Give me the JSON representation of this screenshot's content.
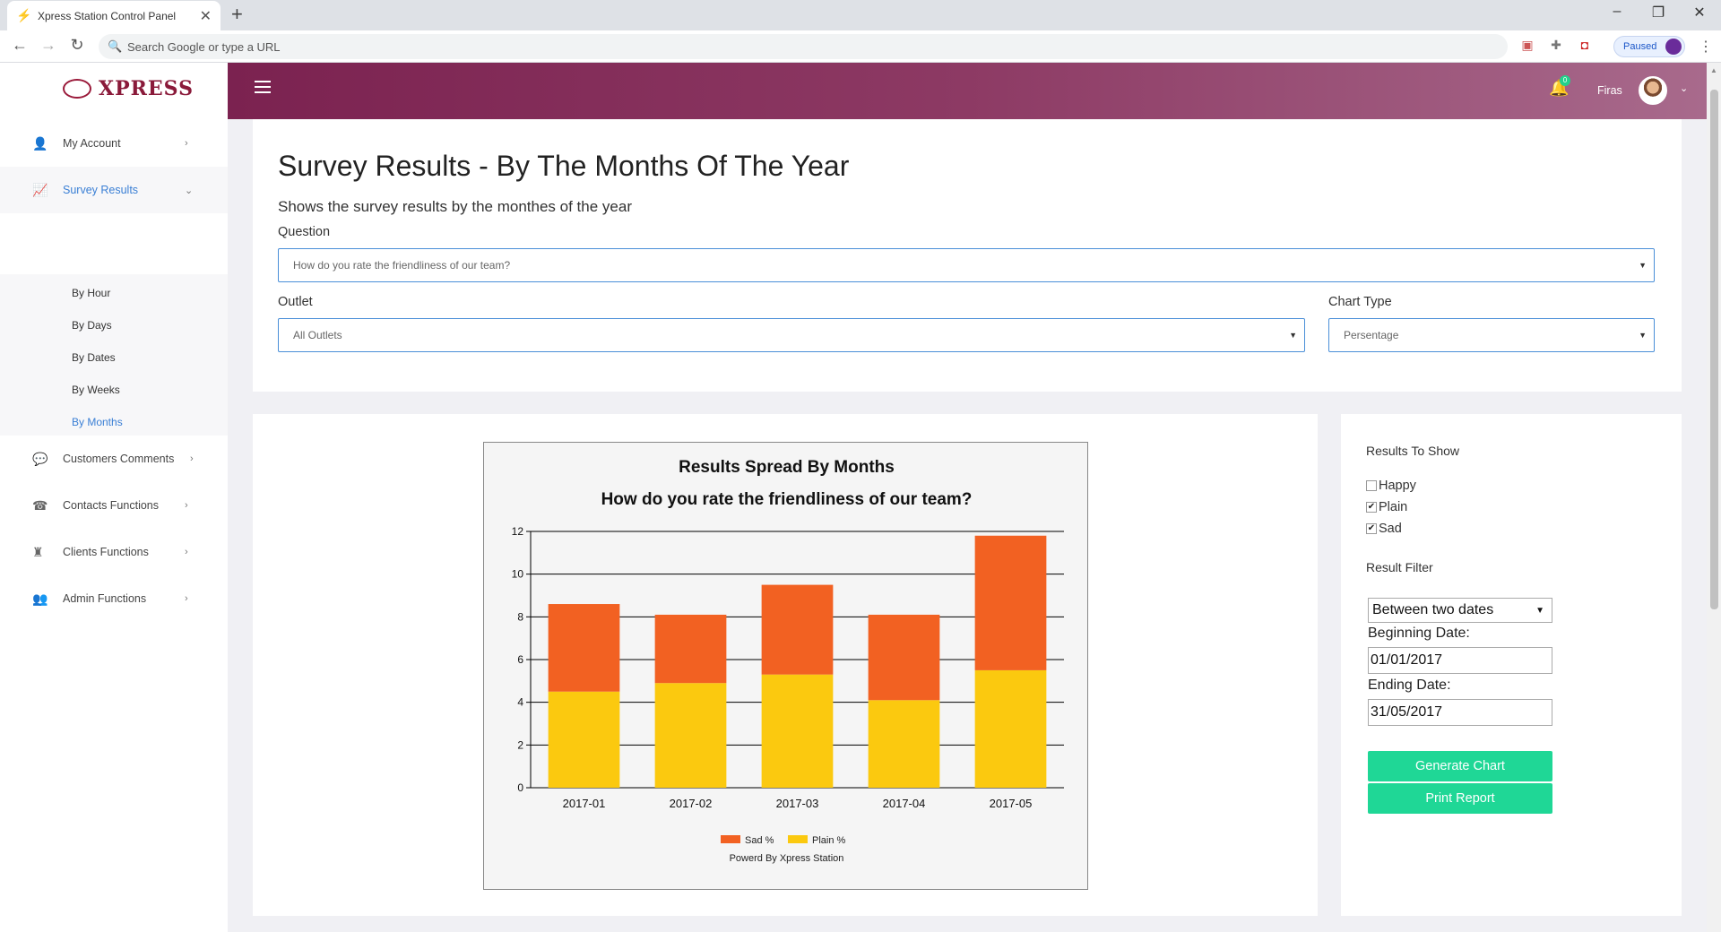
{
  "browser": {
    "tab_title": "Xpress Station Control Panel",
    "address_placeholder": "Search Google or type a URL",
    "profile_status": "Paused"
  },
  "sidebar": {
    "logo_text": "XPRESS",
    "items": [
      {
        "label": "My Account",
        "icon": "user-icon"
      },
      {
        "label": "Survey Results",
        "icon": "chart-icon"
      },
      {
        "label": "Customers Comments",
        "icon": "comment-icon"
      },
      {
        "label": "Contacts Functions",
        "icon": "phone-icon"
      },
      {
        "label": "Clients Functions",
        "icon": "chess-icon"
      },
      {
        "label": "Admin Functions",
        "icon": "users-cog-icon"
      }
    ],
    "submenu": [
      {
        "label": "By Hour"
      },
      {
        "label": "By Days"
      },
      {
        "label": "By Dates"
      },
      {
        "label": "By Weeks"
      },
      {
        "label": "By Months"
      }
    ]
  },
  "header": {
    "notification_count": "0",
    "user_name": "Firas"
  },
  "page": {
    "title": "Survey Results - By The Months Of The Year",
    "subtitle": "Shows the survey results by the monthes of the year",
    "question_label": "Question",
    "question_value": "How do you rate the friendliness of our team?",
    "outlet_label": "Outlet",
    "outlet_value": "All Outlets",
    "chart_type_label": "Chart Type",
    "chart_type_value": "Persentage"
  },
  "options": {
    "results_heading": "Results To Show",
    "checkboxes": [
      {
        "label": "Happy",
        "checked": false
      },
      {
        "label": "Plain",
        "checked": true
      },
      {
        "label": "Sad",
        "checked": true
      }
    ],
    "filter_heading": "Result Filter",
    "filter_value": "Between two dates",
    "begin_label": "Beginning Date:",
    "begin_value": "01/01/2017",
    "end_label": "Ending Date:",
    "end_value": "31/05/2017",
    "generate_label": "Generate Chart",
    "print_label": "Print Report"
  },
  "chart_data": {
    "type": "bar",
    "stacked": true,
    "title": "Results Spread By Months",
    "subtitle": "How do you rate the friendliness of our team?",
    "footer": "Powerd By Xpress Station",
    "categories": [
      "2017-01",
      "2017-02",
      "2017-03",
      "2017-04",
      "2017-05"
    ],
    "series": [
      {
        "name": "Plain %",
        "color": "#fbc90f",
        "values": [
          4.5,
          4.9,
          5.3,
          4.1,
          5.5
        ]
      },
      {
        "name": "Sad %",
        "color": "#f26122",
        "values": [
          4.1,
          3.2,
          4.2,
          4.0,
          6.3
        ]
      }
    ],
    "legend_order": [
      "Sad %",
      "Plain %"
    ],
    "ylim": [
      0,
      12
    ],
    "yticks": [
      0,
      2,
      4,
      6,
      8,
      10,
      12
    ],
    "grid": true,
    "legend_position": "bottom"
  }
}
